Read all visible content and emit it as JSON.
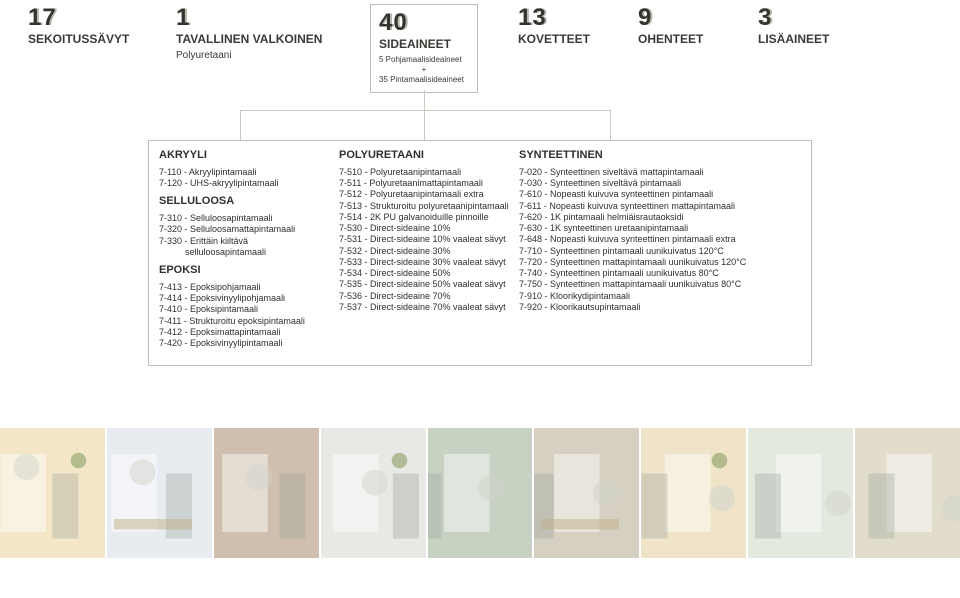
{
  "top": {
    "boxes": [
      {
        "num": "17",
        "label": "SEKOITUSSÄVYT",
        "sub": ""
      },
      {
        "num": "1",
        "label": "TAVALLINEN VALKOINEN",
        "sub": "Polyuretaani"
      },
      {
        "num": "40",
        "label": "SIDEAINEET",
        "sub1": "5 Pohjamaalisideaineet",
        "plus": "+",
        "sub2": "35 Pintamaalisideaineet",
        "boxed": true
      },
      {
        "num": "13",
        "label": "KOVETTEET",
        "sub": ""
      },
      {
        "num": "9",
        "label": "OHENTEET",
        "sub": ""
      },
      {
        "num": "3",
        "label": "LISÄAINEET",
        "sub": ""
      }
    ]
  },
  "akryyli": {
    "title": "AKRYYLI",
    "items": [
      "7-110 - Akryylipintamaali",
      "7-120 - UHS-akryylipintamaali"
    ]
  },
  "selluloosa": {
    "title": "SELLULOOSA",
    "items": [
      "7-310 - Selluloosapintamaali",
      "7-320 - Selluloosamattapintamaali",
      "7-330 - Erittäin kiiltävä selluloosapintamaali"
    ]
  },
  "epoksi": {
    "title": "EPOKSI",
    "items": [
      "7-413 - Epoksipohjamaali",
      "7-414 - Epoksivinyylipohjamaali",
      "7-410 - Epoksipintamaali",
      "7-411 - Strukturoitu epoksipintamaali",
      "7-412 - Epoksimattapintamaali",
      "7-420 - Epoksivinyylipintamaali"
    ]
  },
  "polyuretaani": {
    "title": "POLYURETAANI",
    "items": [
      "7-510 - Polyuretaanipintamaali",
      "7-511 - Polyuretaanimattapintamaali",
      "7-512 - Polyuretaanipintamaali extra",
      "7-513 - Strukturoitu polyuretaanipintamaali",
      "7-514 - 2K PU galvanoiduille pinnoille",
      "7-530 - Direct-sideaine 10%",
      "7-531 - Direct-sideaine 10% vaaleat sävyt",
      "7-532 - Direct-sideaine 30%",
      "7-533 - Direct-sideaine 30% vaaleat sävyt",
      "7-534 - Direct-sideaine 50%",
      "7-535 - Direct-sideaine 50% vaaleat sävyt",
      "7-536 - Direct-sideaine 70%",
      "7-537 - Direct-sideaine 70% vaaleat sävyt"
    ]
  },
  "synteettinen": {
    "title": "SYNTEETTINEN",
    "items": [
      "7-020 - Synteettinen siveltävä mattapintamaali",
      "7-030 - Synteettinen siveltävä pintamaali",
      "7-610 - Nopeasti kuivuva synteettinen pintamaali",
      "7-611 - Nopeasti kuivuva synteettinen mattapintamaali",
      "7-620 - 1K pintamaali helmiäisrautaoksidi",
      "7-630 - 1K synteettinen uretaanipintamaali",
      "7-648 - Nopeasti kuivuva synteettinen pintamaali extra",
      "7-710 - Synteettinen pintamaali uunikuivatus 120°C",
      "7-720 - Synteettinen mattapintamaali uunikuivatus 120°C",
      "7-740 - Synteettinen pintamaali uunikuivatus 80°C",
      "7-750 - Synteettinen mattapintamaali uunikuivatus 80°C",
      "7-910 - Kloorikydipintamaali",
      "7-920 - Kloorikautsupintamaali"
    ]
  },
  "thumbs": {
    "colors": [
      "#f4e7c8",
      "#e8ecf0",
      "#d0bfae",
      "#e8e8e4",
      "#c7d2c2",
      "#d6d0c2",
      "#efe3c8",
      "#e4e9df",
      "#e1dccc"
    ]
  }
}
